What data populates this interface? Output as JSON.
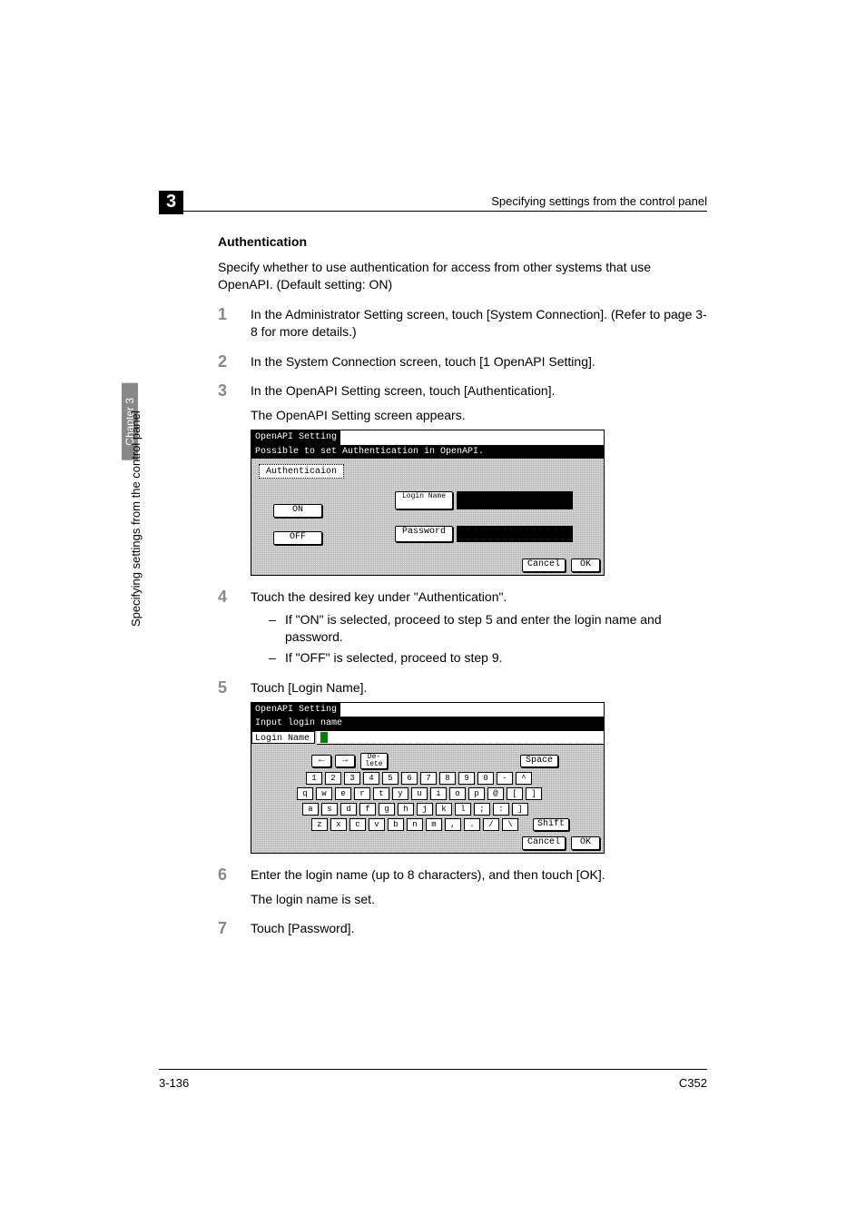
{
  "header": {
    "chapter_tag": "3",
    "right_text": "Specifying settings from the control panel"
  },
  "side": {
    "chip_text": "Chapter 3",
    "vertical_text": "Specifying settings from the control panel"
  },
  "content": {
    "subhead": "Authentication",
    "intro": "Specify whether to use authentication for access from other systems that use OpenAPI. (Default setting: ON)",
    "steps": [
      {
        "num": "1",
        "text": "In the Administrator Setting screen, touch [System Connection]. (Refer to page 3-8 for more details.)"
      },
      {
        "num": "2",
        "text": "In the System Connection screen, touch [1 OpenAPI Setting]."
      },
      {
        "num": "3",
        "text": "In the OpenAPI Setting screen, touch [Authentication].",
        "sub": "The OpenAPI Setting screen appears."
      },
      {
        "num": "4",
        "text": "Touch the desired key under \"Authentication\".",
        "dashes": [
          "If \"ON\" is selected, proceed to step 5 and enter the login name and password.",
          "If \"OFF\" is selected, proceed to step 9."
        ]
      },
      {
        "num": "5",
        "text": "Touch [Login Name]."
      },
      {
        "num": "6",
        "text": "Enter the login name (up to 8 characters), and then touch [OK].",
        "sub": "The login name is set."
      },
      {
        "num": "7",
        "text": "Touch [Password]."
      }
    ]
  },
  "panel1": {
    "title_tab": "OpenAPI Setting",
    "title_strip": "Possible to set Authentication in OpenAPI.",
    "auth_label": "Authenticaion",
    "on_label": "ON",
    "off_label": "OFF",
    "login_name_btn": "Login\nName",
    "password_btn": "Password",
    "cancel": "Cancel",
    "ok": "OK"
  },
  "panel2": {
    "title_tab": "OpenAPI Setting",
    "title_strip": "Input login name",
    "login_name_label": "Login Name",
    "arrow_left": "←",
    "arrow_right": "→",
    "delete": "De-\nlete",
    "space": "Space",
    "shift": "Shift",
    "cancel": "Cancel",
    "ok": "OK",
    "row_num": [
      "1",
      "2",
      "3",
      "4",
      "5",
      "6",
      "7",
      "8",
      "9",
      "0",
      "-",
      "^"
    ],
    "row_q": [
      "q",
      "w",
      "e",
      "r",
      "t",
      "y",
      "u",
      "i",
      "o",
      "p",
      "@",
      "[",
      "]"
    ],
    "row_a": [
      "a",
      "s",
      "d",
      "f",
      "g",
      "h",
      "j",
      "k",
      "l",
      ";",
      ":",
      "]"
    ],
    "row_z": [
      "z",
      "x",
      "c",
      "v",
      "b",
      "n",
      "m",
      ",",
      ".",
      "/",
      "\\"
    ]
  },
  "footer": {
    "left": "3-136",
    "right": "C352"
  }
}
